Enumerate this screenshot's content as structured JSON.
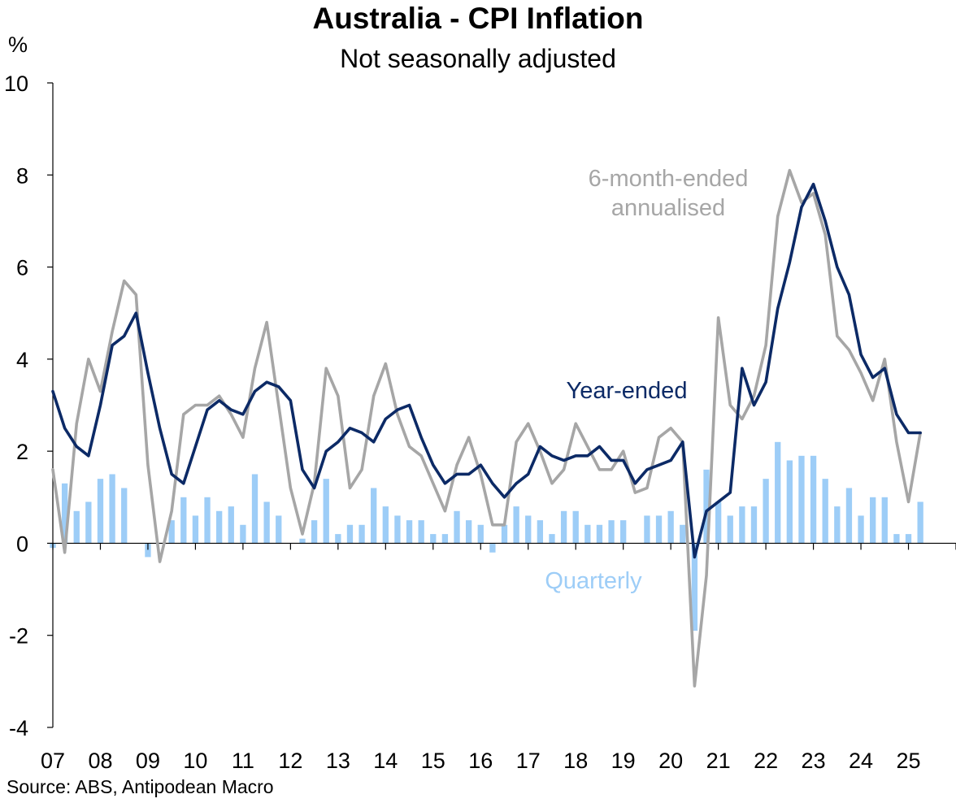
{
  "chart_data": {
    "type": "bar+line",
    "title": "Australia - CPI Inflation",
    "subtitle": "Not seasonally adjusted",
    "ylabel": "%",
    "ylim": [
      -4,
      10
    ],
    "yticks": [
      10,
      8,
      6,
      4,
      2,
      0,
      -2,
      -4
    ],
    "xlim": [
      2007.0,
      2026.0
    ],
    "xticks": [
      {
        "label": "07",
        "pos": 2007.0
      },
      {
        "label": "08",
        "pos": 2008.0
      },
      {
        "label": "09",
        "pos": 2009.0
      },
      {
        "label": "10",
        "pos": 2010.0
      },
      {
        "label": "11",
        "pos": 2011.0
      },
      {
        "label": "12",
        "pos": 2012.0
      },
      {
        "label": "13",
        "pos": 2013.0
      },
      {
        "label": "14",
        "pos": 2014.0
      },
      {
        "label": "15",
        "pos": 2015.0
      },
      {
        "label": "16",
        "pos": 2016.0
      },
      {
        "label": "17",
        "pos": 2017.0
      },
      {
        "label": "18",
        "pos": 2018.0
      },
      {
        "label": "19",
        "pos": 2019.0
      },
      {
        "label": "20",
        "pos": 2020.0
      },
      {
        "label": "21",
        "pos": 2021.0
      },
      {
        "label": "22",
        "pos": 2022.0
      },
      {
        "label": "23",
        "pos": 2023.0
      },
      {
        "label": "24",
        "pos": 2024.0
      },
      {
        "label": "25",
        "pos": 2025.0
      }
    ],
    "x": [
      2007.0,
      2007.25,
      2007.5,
      2007.75,
      2008.0,
      2008.25,
      2008.5,
      2008.75,
      2009.0,
      2009.25,
      2009.5,
      2009.75,
      2010.0,
      2010.25,
      2010.5,
      2010.75,
      2011.0,
      2011.25,
      2011.5,
      2011.75,
      2012.0,
      2012.25,
      2012.5,
      2012.75,
      2013.0,
      2013.25,
      2013.5,
      2013.75,
      2014.0,
      2014.25,
      2014.5,
      2014.75,
      2015.0,
      2015.25,
      2015.5,
      2015.75,
      2016.0,
      2016.25,
      2016.5,
      2016.75,
      2017.0,
      2017.25,
      2017.5,
      2017.75,
      2018.0,
      2018.25,
      2018.5,
      2018.75,
      2019.0,
      2019.25,
      2019.5,
      2019.75,
      2020.0,
      2020.25,
      2020.5,
      2020.75,
      2021.0,
      2021.25,
      2021.5,
      2021.75,
      2022.0,
      2022.25,
      2022.5,
      2022.75,
      2023.0,
      2023.25,
      2023.5,
      2023.75,
      2024.0,
      2024.25,
      2024.5,
      2024.75,
      2025.0,
      2025.25
    ],
    "series": [
      {
        "name": "Quarterly",
        "kind": "bar",
        "color": "#9dcdf7",
        "values": [
          -0.1,
          1.3,
          0.7,
          0.9,
          1.4,
          1.5,
          1.2,
          0.0,
          -0.3,
          0.0,
          0.5,
          1.0,
          0.6,
          1.0,
          0.7,
          0.8,
          0.4,
          1.5,
          0.9,
          0.6,
          0.0,
          0.1,
          0.5,
          1.4,
          0.2,
          0.4,
          0.4,
          1.2,
          0.8,
          0.6,
          0.5,
          0.5,
          0.2,
          0.2,
          0.7,
          0.5,
          0.4,
          -0.2,
          0.4,
          0.8,
          0.6,
          0.5,
          0.2,
          0.7,
          0.7,
          0.4,
          0.4,
          0.5,
          0.5,
          0.0,
          0.6,
          0.6,
          0.7,
          0.4,
          -1.9,
          1.6,
          0.9,
          0.6,
          0.8,
          0.8,
          1.4,
          2.2,
          1.8,
          1.9,
          1.9,
          1.4,
          0.8,
          1.2,
          0.6,
          1.0,
          1.0,
          0.2,
          0.2,
          0.9
        ]
      },
      {
        "name": "Year-ended",
        "kind": "line",
        "color": "#0c2a66",
        "values": [
          3.3,
          2.5,
          2.1,
          1.9,
          3.0,
          4.3,
          4.5,
          5.0,
          3.7,
          2.5,
          1.5,
          1.3,
          2.1,
          2.9,
          3.1,
          2.9,
          2.8,
          3.3,
          3.5,
          3.4,
          3.1,
          1.6,
          1.2,
          2.0,
          2.2,
          2.5,
          2.4,
          2.2,
          2.7,
          2.9,
          3.0,
          2.3,
          1.7,
          1.3,
          1.5,
          1.5,
          1.7,
          1.3,
          1.0,
          1.3,
          1.5,
          2.1,
          1.9,
          1.8,
          1.9,
          1.9,
          2.1,
          1.8,
          1.8,
          1.3,
          1.6,
          1.7,
          1.8,
          2.2,
          -0.3,
          0.7,
          0.9,
          1.1,
          3.8,
          3.0,
          3.5,
          5.1,
          6.1,
          7.3,
          7.8,
          7.0,
          6.0,
          5.4,
          4.1,
          3.6,
          3.8,
          2.8,
          2.4,
          2.4
        ]
      },
      {
        "name": "6-month-ended annualised",
        "kind": "line",
        "color": "#a6a6a6",
        "values": [
          1.6,
          -0.2,
          2.6,
          4.0,
          3.3,
          4.6,
          5.7,
          5.4,
          1.7,
          -0.4,
          0.7,
          2.8,
          3.0,
          3.0,
          3.2,
          2.8,
          2.3,
          3.8,
          4.8,
          3.0,
          1.2,
          0.2,
          1.3,
          3.8,
          3.2,
          1.2,
          1.6,
          3.2,
          3.9,
          2.8,
          2.1,
          1.9,
          1.3,
          0.7,
          1.7,
          2.3,
          1.5,
          0.4,
          0.4,
          2.2,
          2.6,
          2.0,
          1.3,
          1.6,
          2.6,
          2.1,
          1.6,
          1.6,
          2.0,
          1.1,
          1.2,
          2.3,
          2.5,
          2.2,
          -3.1,
          -0.7,
          4.9,
          3.0,
          2.7,
          3.2,
          4.3,
          7.1,
          8.1,
          7.4,
          7.6,
          6.7,
          4.5,
          4.2,
          3.7,
          3.1,
          4.0,
          2.2,
          0.9,
          2.4
        ]
      }
    ],
    "annotations": [
      {
        "series": "6-month-ended annualised",
        "lines": [
          "6-month-ended",
          "annualised"
        ],
        "color": "#a6a6a6"
      },
      {
        "series": "Year-ended",
        "lines": [
          "Year-ended"
        ],
        "color": "#0c2a66"
      },
      {
        "series": "Quarterly",
        "lines": [
          "Quarterly"
        ],
        "color": "#9dcdf7"
      }
    ],
    "grid": false,
    "legend": "none"
  },
  "source": "Source: ABS, Antipodean Macro"
}
